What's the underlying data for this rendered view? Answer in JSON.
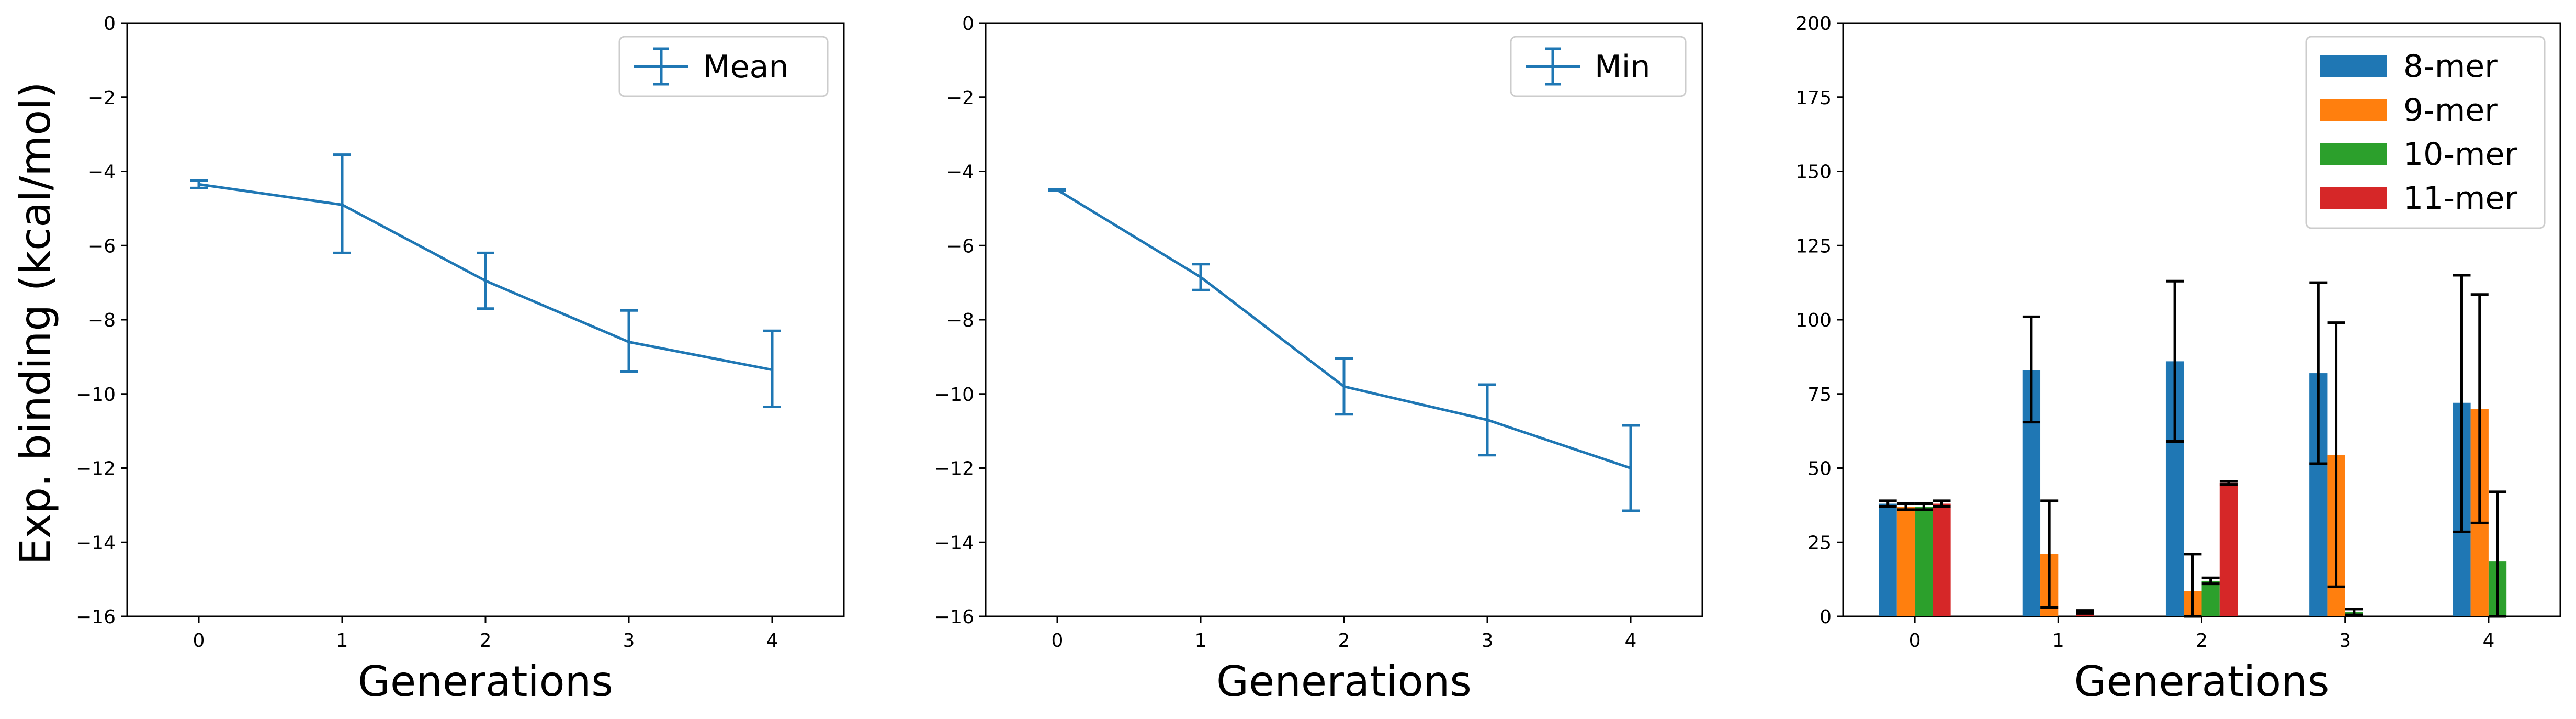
{
  "figure": {
    "shared_ylabel": "Exp. binding (kcal/mol)"
  },
  "chart_data": [
    {
      "type": "line",
      "title": "",
      "xlabel": "Generations",
      "ylabel": "Exp. binding (kcal/mol)",
      "x": [
        0,
        1,
        2,
        3,
        4
      ],
      "xticks": [
        "0",
        "1",
        "2",
        "3",
        "4"
      ],
      "xlim": [
        -0.5,
        4.5
      ],
      "ylim": [
        -16,
        0
      ],
      "yticks": [
        "0",
        "−2",
        "−4",
        "−6",
        "−8",
        "−10",
        "−12",
        "−14",
        "−16"
      ],
      "ytick_values": [
        0,
        -2,
        -4,
        -6,
        -8,
        -10,
        -12,
        -14,
        -16
      ],
      "grid": false,
      "legend_position": "upper-right",
      "color": "#1f77b4",
      "series": [
        {
          "name": "Mean",
          "values": [
            -4.35,
            -4.9,
            -6.95,
            -8.6,
            -9.35
          ],
          "err_low": [
            -4.45,
            -6.2,
            -7.7,
            -9.4,
            -10.35
          ],
          "err_high": [
            -4.25,
            -3.55,
            -6.2,
            -7.75,
            -8.3
          ]
        }
      ]
    },
    {
      "type": "line",
      "title": "",
      "xlabel": "Generations",
      "ylabel": "",
      "x": [
        0,
        1,
        2,
        3,
        4
      ],
      "xticks": [
        "0",
        "1",
        "2",
        "3",
        "4"
      ],
      "xlim": [
        -0.5,
        4.5
      ],
      "ylim": [
        -16,
        0
      ],
      "yticks": [
        "0",
        "−2",
        "−4",
        "−6",
        "−8",
        "−10",
        "−12",
        "−14",
        "−16"
      ],
      "ytick_values": [
        0,
        -2,
        -4,
        -6,
        -8,
        -10,
        -12,
        -14,
        -16
      ],
      "grid": false,
      "legend_position": "upper-right",
      "color": "#1f77b4",
      "series": [
        {
          "name": "Min",
          "values": [
            -4.5,
            -6.85,
            -9.8,
            -10.7,
            -12.0
          ],
          "err_low": [
            -4.52,
            -7.2,
            -10.55,
            -11.65,
            -13.15
          ],
          "err_high": [
            -4.48,
            -6.5,
            -9.05,
            -9.75,
            -10.85
          ]
        }
      ]
    },
    {
      "type": "bar",
      "title": "",
      "xlabel": "Generations",
      "ylabel": "",
      "categories": [
        "0",
        "1",
        "2",
        "3",
        "4"
      ],
      "xlim": [
        -0.5,
        4.5
      ],
      "ylim": [
        0,
        200
      ],
      "yticks": [
        "0",
        "25",
        "50",
        "75",
        "100",
        "125",
        "150",
        "175",
        "200"
      ],
      "ytick_values": [
        0,
        25,
        50,
        75,
        100,
        125,
        150,
        175,
        200
      ],
      "grid": false,
      "legend_position": "upper-right",
      "errorbar_color": "#000000",
      "series": [
        {
          "name": "8-mer",
          "color": "#1f77b4",
          "values": [
            38,
            83,
            86,
            82,
            72
          ],
          "err_low": [
            37,
            65.5,
            59,
            51.5,
            28.5
          ],
          "err_high": [
            39,
            101,
            113,
            112.5,
            115
          ]
        },
        {
          "name": "9-mer",
          "color": "#ff7f0e",
          "values": [
            37,
            21,
            8.5,
            54.5,
            70
          ],
          "err_low": [
            36,
            3,
            0,
            10,
            31.5
          ],
          "err_high": [
            38,
            39,
            21,
            99,
            108.5
          ]
        },
        {
          "name": "10-mer",
          "color": "#2ca02c",
          "values": [
            37,
            0,
            12,
            1.5,
            18.5
          ],
          "err_low": [
            36,
            0,
            11,
            0.5,
            0
          ],
          "err_high": [
            38,
            0,
            13,
            2.5,
            42
          ]
        },
        {
          "name": "11-mer",
          "color": "#d62728",
          "values": [
            38,
            1.5,
            45,
            0,
            0
          ],
          "err_low": [
            37,
            1,
            44.5,
            0,
            0
          ],
          "err_high": [
            39,
            2,
            45.5,
            0,
            0
          ]
        }
      ]
    }
  ]
}
